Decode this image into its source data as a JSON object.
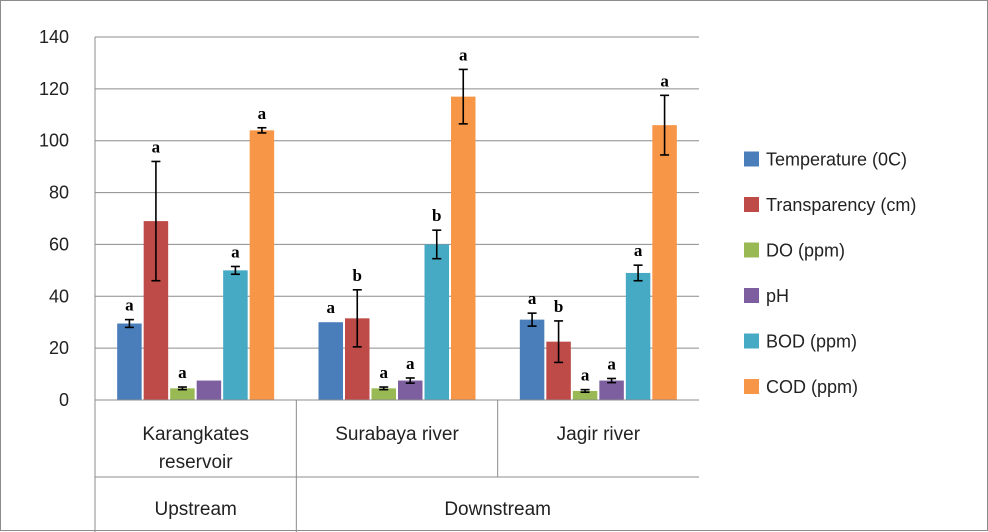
{
  "chart_data": {
    "type": "bar",
    "title": "",
    "xlabel": "",
    "ylabel": "",
    "ylim": [
      0,
      140
    ],
    "yticks": [
      0,
      20,
      40,
      60,
      80,
      100,
      120,
      140
    ],
    "grid": true,
    "legend_position": "right",
    "categories": [
      "Karangkates reservoir",
      "Surabaya river",
      "Jagir river"
    ],
    "category_lines": [
      [
        "Karangkates",
        "reservoir"
      ],
      [
        "Surabaya river"
      ],
      [
        "Jagir river"
      ]
    ],
    "groups": [
      {
        "label": "Upstream",
        "categories": [
          0
        ]
      },
      {
        "label": "Downstream",
        "categories": [
          1,
          2
        ]
      }
    ],
    "series": [
      {
        "name": "Temperature (0C)",
        "color": "#4a7ebb",
        "values": [
          29.5,
          30,
          31
        ],
        "errors": [
          1.5,
          0,
          2.5
        ],
        "labels": [
          "a",
          "a",
          "a"
        ]
      },
      {
        "name": "Transparency (cm)",
        "color": "#be4b48",
        "values": [
          69,
          31.5,
          22.5
        ],
        "errors": [
          23,
          11,
          8
        ],
        "labels": [
          "a",
          "b",
          "b"
        ]
      },
      {
        "name": "DO (ppm)",
        "color": "#98b954",
        "values": [
          4.5,
          4.5,
          3.5
        ],
        "errors": [
          0.5,
          0.5,
          0.5
        ],
        "labels": [
          "a",
          "a",
          "a"
        ]
      },
      {
        "name": "pH",
        "color": "#7d5fa0",
        "values": [
          7.5,
          7.5,
          7.5
        ],
        "errors": [
          0,
          1,
          0.8
        ],
        "labels": [
          "",
          "a",
          "a"
        ]
      },
      {
        "name": "BOD (ppm)",
        "color": "#46aac5",
        "values": [
          50,
          60,
          49
        ],
        "errors": [
          1.5,
          5.5,
          3
        ],
        "labels": [
          "a",
          "b",
          "a"
        ]
      },
      {
        "name": "COD (ppm)",
        "color": "#f79646",
        "values": [
          104,
          117,
          106
        ],
        "errors": [
          1,
          10.5,
          11.5
        ],
        "labels": [
          "a",
          "a",
          "a"
        ]
      }
    ]
  }
}
